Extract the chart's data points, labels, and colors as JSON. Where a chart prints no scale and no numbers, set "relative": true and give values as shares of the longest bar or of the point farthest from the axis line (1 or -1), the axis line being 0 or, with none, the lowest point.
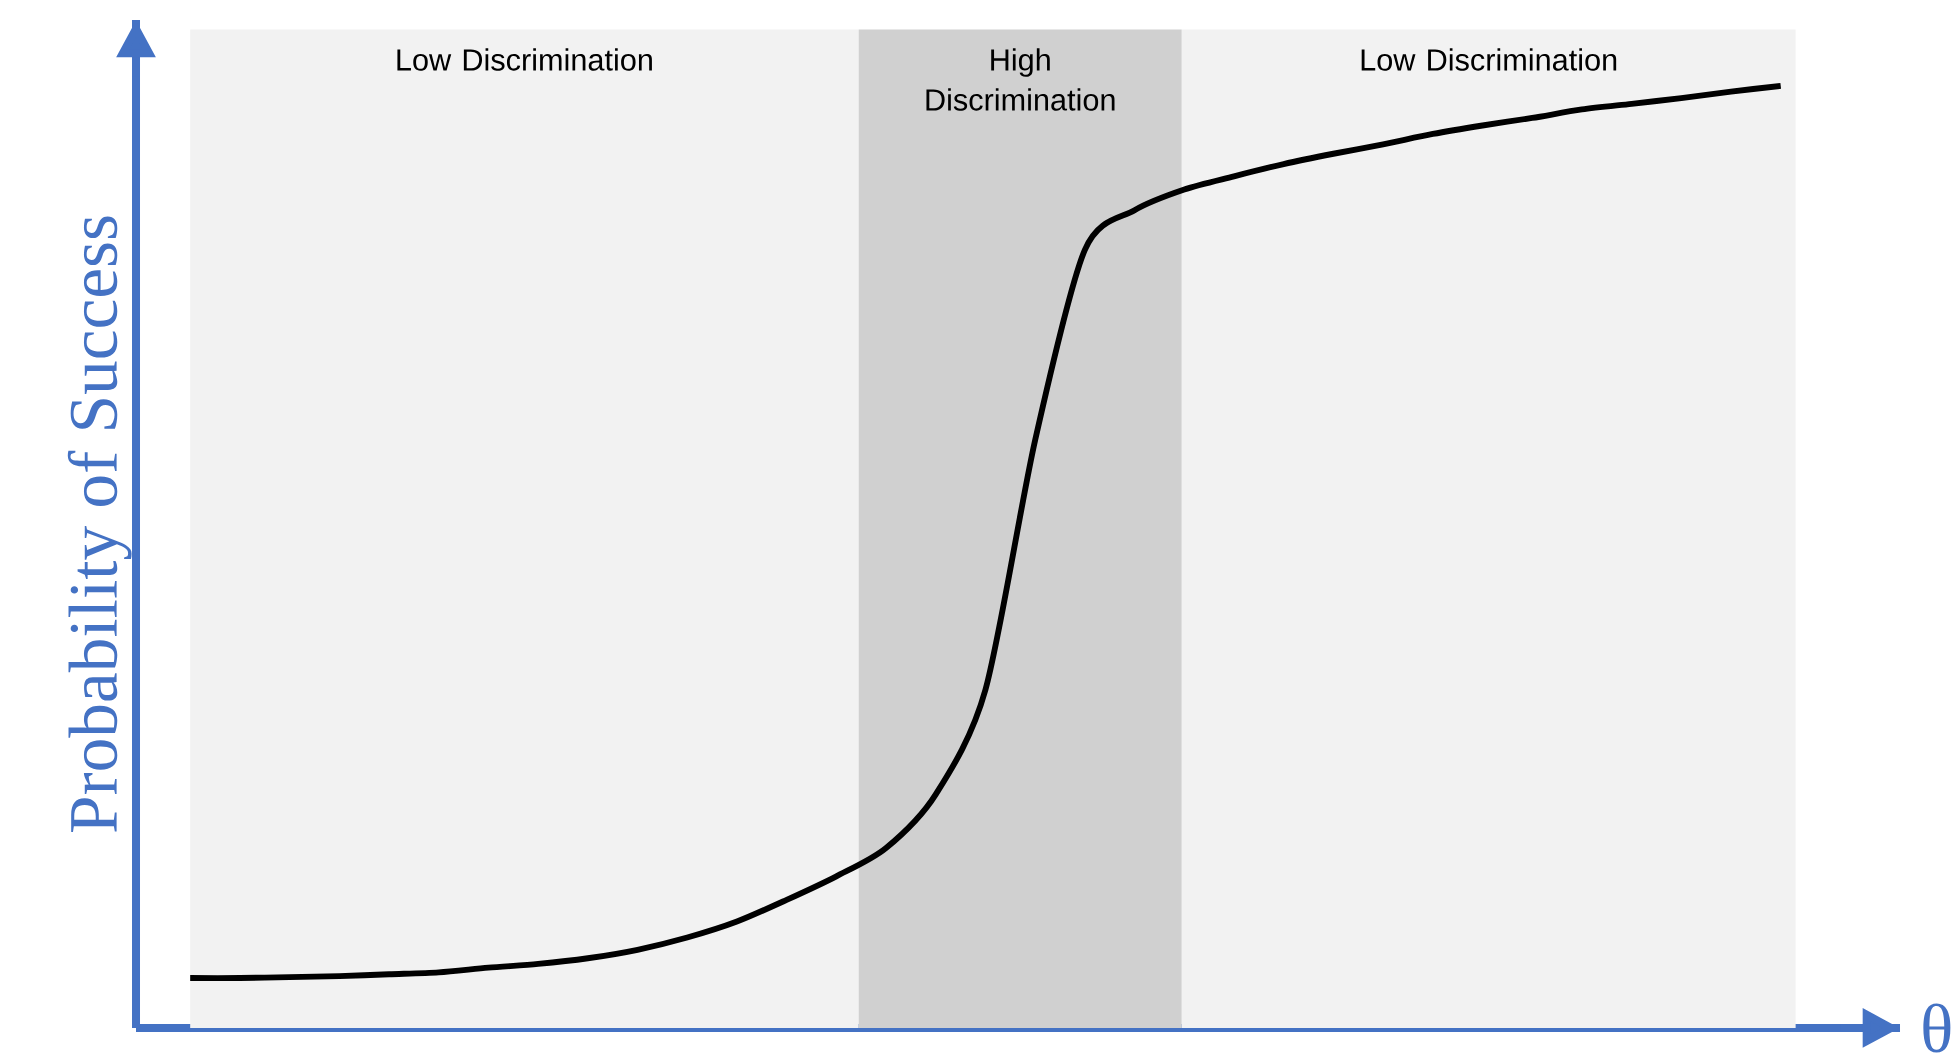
{
  "chart_data": {
    "type": "line",
    "relative": true,
    "ylabel": "Probability of Success",
    "xlabel": "θ",
    "categories": [
      null,
      null,
      null,
      null,
      null,
      null,
      null,
      null,
      null,
      null,
      null,
      null,
      null,
      null,
      null,
      null,
      null,
      null,
      null,
      null,
      null,
      null,
      null,
      null,
      null,
      null,
      null,
      null,
      null,
      null,
      null,
      null,
      null
    ],
    "series": [
      {
        "color": "#000000",
        "values": [
          0.053,
          0.053,
          0.054,
          0.055,
          0.057,
          0.059,
          0.064,
          0.068,
          0.074,
          0.083,
          0.096,
          0.113,
          0.136,
          0.161,
          0.191,
          0.248,
          0.359,
          0.624,
          0.826,
          0.868,
          0.89,
          0.904,
          0.917,
          0.928,
          0.938,
          0.949,
          0.958,
          0.966,
          0.975,
          0.981,
          0.987,
          0.994,
          1.0
        ]
      }
    ],
    "annotations": [
      "Low Discrimination",
      "High Discrimination",
      "Low Discrimination"
    ]
  }
}
